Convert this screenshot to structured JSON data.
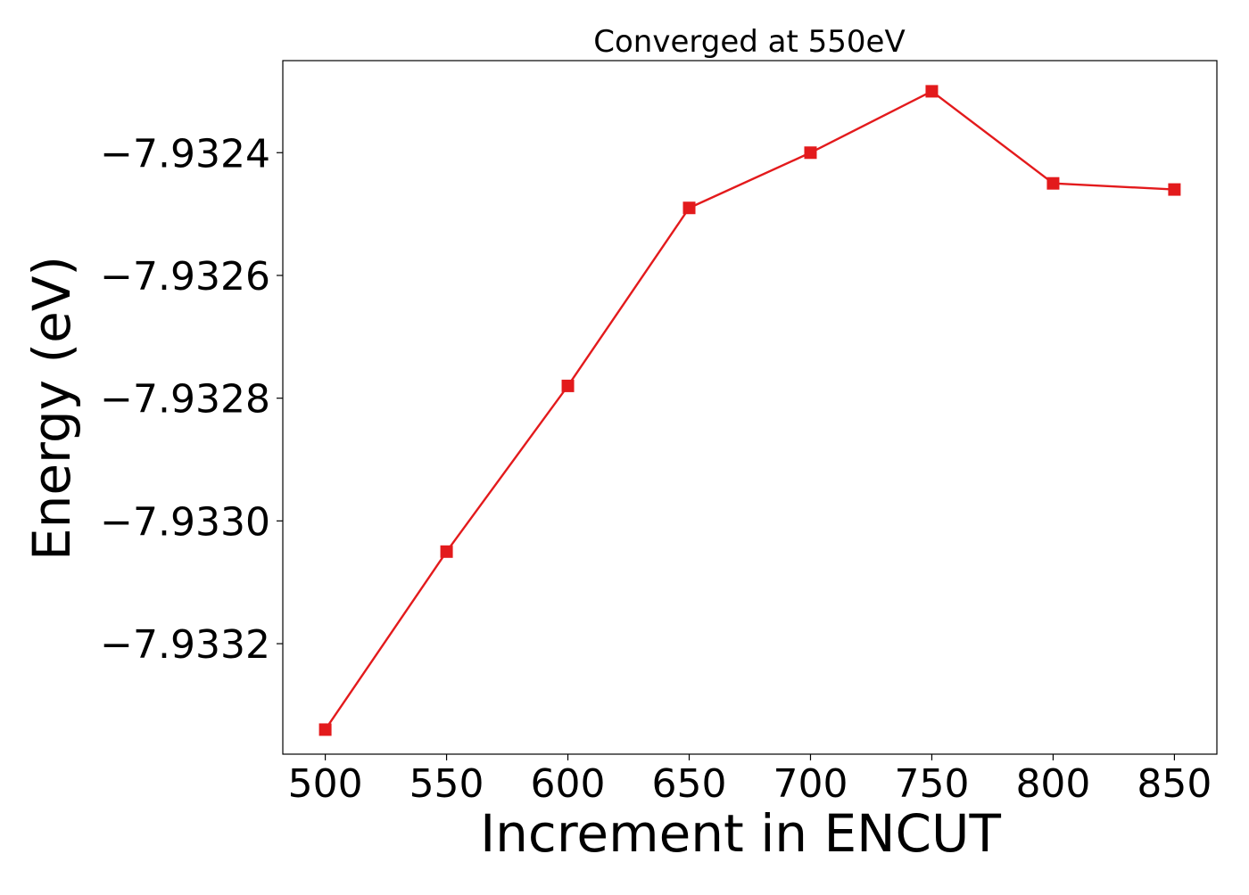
{
  "chart_data": {
    "type": "line",
    "title": "Converged at 550eV",
    "xlabel": "Increment in ENCUT",
    "ylabel": "Energy (eV)",
    "x": [
      500,
      550,
      600,
      650,
      700,
      750,
      800,
      850
    ],
    "series": [
      {
        "values": [
          -7.93334,
          -7.93305,
          -7.93278,
          -7.93249,
          -7.9324,
          -7.9323,
          -7.93245,
          -7.93246
        ],
        "color": "#e31a1c",
        "marker": "square"
      }
    ],
    "xticks": [
      500,
      550,
      600,
      650,
      700,
      750,
      800,
      850
    ],
    "xtick_labels": [
      "500",
      "550",
      "600",
      "650",
      "700",
      "750",
      "800",
      "850"
    ],
    "yticks": [
      -7.9332,
      -7.933,
      -7.9328,
      -7.9326,
      -7.9324
    ],
    "ytick_labels": [
      "−7.9332",
      "−7.9330",
      "−7.9328",
      "−7.9326",
      "−7.9324"
    ],
    "xlim": [
      482.5,
      867.5
    ],
    "ylim": [
      -7.93338,
      -7.93225
    ],
    "grid": false,
    "legend": false
  }
}
